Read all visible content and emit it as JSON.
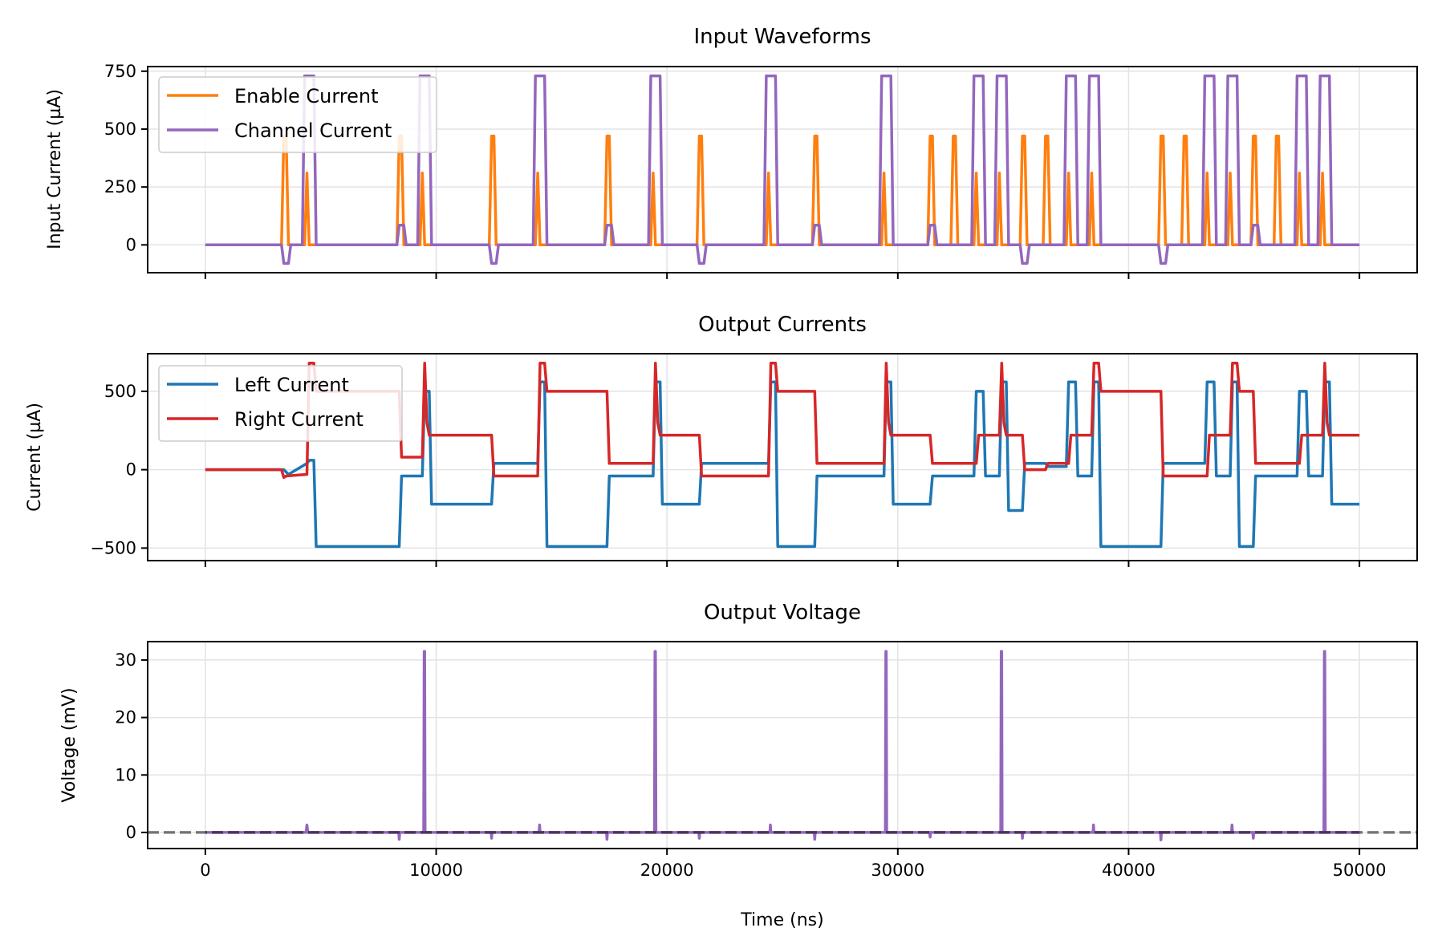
{
  "chart_data": [
    {
      "type": "line",
      "title": "Input Waveforms",
      "xlabel": "",
      "ylabel": "Input Current (µA)",
      "xlim": [
        -2500,
        52500
      ],
      "ylim": [
        -120,
        770
      ],
      "xticks": [
        0,
        10000,
        20000,
        30000,
        40000,
        50000
      ],
      "yticks": [
        0,
        250,
        500,
        750
      ],
      "ytick_labels": [
        "0",
        "250",
        "500",
        "750"
      ],
      "grid": true,
      "legend": "upper-left",
      "series": [
        {
          "name": "Enable Current",
          "color": "#ff7f0e",
          "x": [
            0,
            3300,
            3400,
            3500,
            3600,
            4300,
            4400,
            4500,
            8300,
            8400,
            8500,
            8600,
            9300,
            9400,
            9500,
            12300,
            12400,
            12500,
            12600,
            14300,
            14400,
            14500,
            17300,
            17400,
            17500,
            17600,
            19300,
            19400,
            19500,
            21300,
            21400,
            21500,
            21600,
            24300,
            24400,
            24500,
            26300,
            26400,
            26500,
            26600,
            29300,
            29400,
            29500,
            31300,
            31400,
            31500,
            31600,
            32300,
            32400,
            32500,
            32600,
            33300,
            33400,
            33500,
            34300,
            34400,
            34500,
            35300,
            35400,
            35500,
            35600,
            36300,
            36400,
            36500,
            36600,
            37300,
            37400,
            37500,
            38300,
            38400,
            38500,
            41300,
            41400,
            41500,
            41600,
            42300,
            42400,
            42500,
            42600,
            43300,
            43400,
            43500,
            44300,
            44400,
            44500,
            45300,
            45400,
            45500,
            45600,
            46300,
            46400,
            46500,
            46600,
            47300,
            47400,
            47500,
            48300,
            48400,
            48500,
            50000
          ],
          "y": [
            0,
            0,
            470,
            470,
            0,
            0,
            310,
            0,
            0,
            470,
            470,
            0,
            0,
            310,
            0,
            0,
            470,
            470,
            0,
            0,
            310,
            0,
            0,
            470,
            470,
            0,
            0,
            310,
            0,
            0,
            470,
            470,
            0,
            0,
            310,
            0,
            0,
            470,
            470,
            0,
            0,
            310,
            0,
            0,
            470,
            470,
            0,
            0,
            470,
            470,
            0,
            0,
            310,
            0,
            0,
            310,
            0,
            0,
            470,
            470,
            0,
            0,
            470,
            470,
            0,
            0,
            310,
            0,
            0,
            310,
            0,
            0,
            470,
            470,
            0,
            0,
            470,
            470,
            0,
            0,
            310,
            0,
            0,
            310,
            0,
            0,
            470,
            470,
            0,
            0,
            470,
            470,
            0,
            0,
            310,
            0,
            0,
            310,
            0,
            0
          ]
        },
        {
          "name": "Channel Current",
          "color": "#9467bd",
          "x": [
            0,
            3300,
            3400,
            3600,
            3700,
            4200,
            4300,
            4700,
            4800,
            8300,
            8400,
            8600,
            8700,
            9200,
            9300,
            9700,
            9800,
            12300,
            12400,
            12600,
            12700,
            14200,
            14300,
            14700,
            14800,
            17300,
            17400,
            17600,
            17700,
            19200,
            19300,
            19700,
            19800,
            21300,
            21400,
            21600,
            21700,
            24200,
            24300,
            24700,
            24800,
            26300,
            26400,
            26600,
            26700,
            29200,
            29300,
            29700,
            29800,
            31300,
            31400,
            31600,
            31700,
            33200,
            33300,
            33700,
            33800,
            34200,
            34300,
            34700,
            34800,
            35300,
            35400,
            35600,
            35700,
            37200,
            37300,
            37700,
            37800,
            38200,
            38300,
            38700,
            38800,
            41300,
            41400,
            41600,
            41700,
            43200,
            43300,
            43700,
            43800,
            44200,
            44300,
            44700,
            44800,
            45300,
            45400,
            45600,
            45700,
            47200,
            47300,
            47700,
            47800,
            48200,
            48300,
            48700,
            48800,
            50000
          ],
          "y": [
            0,
            0,
            -80,
            -80,
            0,
            0,
            730,
            730,
            0,
            0,
            85,
            85,
            0,
            0,
            730,
            730,
            0,
            0,
            -80,
            -80,
            0,
            0,
            730,
            730,
            0,
            0,
            85,
            85,
            0,
            0,
            730,
            730,
            0,
            0,
            -80,
            -80,
            0,
            0,
            730,
            730,
            0,
            0,
            85,
            85,
            0,
            0,
            730,
            730,
            0,
            0,
            85,
            85,
            0,
            0,
            730,
            730,
            0,
            0,
            730,
            730,
            0,
            0,
            -80,
            -80,
            0,
            0,
            730,
            730,
            0,
            0,
            730,
            730,
            0,
            0,
            -80,
            -80,
            0,
            0,
            730,
            730,
            0,
            0,
            730,
            730,
            0,
            0,
            85,
            85,
            0,
            0,
            730,
            730,
            0,
            0,
            730,
            730,
            0,
            0
          ]
        }
      ]
    },
    {
      "type": "line",
      "title": "Output Currents",
      "xlabel": "",
      "ylabel": "Current (µA)",
      "xlim": [
        -2500,
        52500
      ],
      "ylim": [
        -580,
        740
      ],
      "xticks": [
        0,
        10000,
        20000,
        30000,
        40000,
        50000
      ],
      "yticks": [
        -500,
        0,
        500
      ],
      "ytick_labels": [
        "−500",
        "0",
        "500"
      ],
      "grid": true,
      "legend": "upper-left",
      "series": [
        {
          "name": "Left Current",
          "color": "#1f77b4",
          "x": [
            0,
            3400,
            3600,
            4400,
            4500,
            4700,
            4800,
            8400,
            8500,
            9400,
            9500,
            9700,
            9800,
            12400,
            12500,
            14400,
            14500,
            14700,
            14800,
            17400,
            17500,
            19400,
            19500,
            19700,
            19800,
            21400,
            21500,
            24400,
            24500,
            24700,
            24800,
            26400,
            26500,
            29400,
            29500,
            29700,
            29800,
            31400,
            31500,
            33300,
            33400,
            33700,
            33800,
            34400,
            34500,
            34700,
            34800,
            35400,
            35500,
            36400,
            36500,
            37300,
            37400,
            37700,
            37800,
            38400,
            38500,
            38700,
            38800,
            41400,
            41500,
            43300,
            43400,
            43700,
            43800,
            44400,
            44500,
            44700,
            44800,
            45400,
            45500,
            47300,
            47400,
            47700,
            47800,
            48400,
            48500,
            48700,
            48800,
            50000
          ],
          "y": [
            0,
            0,
            -30,
            40,
            60,
            60,
            -490,
            -490,
            -40,
            -40,
            500,
            500,
            -220,
            -220,
            40,
            40,
            560,
            560,
            -490,
            -490,
            -40,
            -40,
            560,
            560,
            -220,
            -220,
            40,
            40,
            560,
            560,
            -490,
            -490,
            -40,
            -40,
            560,
            560,
            -220,
            -220,
            -40,
            -40,
            500,
            500,
            -40,
            -40,
            560,
            560,
            -260,
            -260,
            40,
            40,
            20,
            20,
            560,
            560,
            -40,
            -40,
            560,
            560,
            -490,
            -490,
            40,
            40,
            560,
            560,
            -40,
            -40,
            560,
            560,
            -490,
            -490,
            -40,
            -40,
            500,
            500,
            -40,
            -40,
            560,
            560,
            -220,
            -220
          ]
        },
        {
          "name": "Right Current",
          "color": "#d62728",
          "x": [
            0,
            3300,
            3400,
            3500,
            4400,
            4500,
            4700,
            4800,
            8400,
            8500,
            9400,
            9500,
            9600,
            9700,
            12400,
            12500,
            14400,
            14500,
            14700,
            14800,
            17400,
            17500,
            19400,
            19500,
            19600,
            19700,
            21400,
            21500,
            24400,
            24500,
            24700,
            24800,
            26400,
            26500,
            29400,
            29500,
            29600,
            29700,
            31400,
            31500,
            33400,
            33500,
            34400,
            34500,
            34600,
            34700,
            35400,
            35500,
            36400,
            36500,
            37400,
            37500,
            38400,
            38500,
            38700,
            38800,
            41400,
            41500,
            43400,
            43500,
            44400,
            44500,
            44700,
            44800,
            45400,
            45500,
            47400,
            47500,
            48400,
            48500,
            48600,
            48700,
            50000
          ],
          "y": [
            0,
            0,
            -50,
            -40,
            -30,
            680,
            680,
            500,
            500,
            80,
            80,
            680,
            300,
            220,
            220,
            -40,
            -40,
            680,
            680,
            500,
            500,
            40,
            40,
            680,
            300,
            220,
            220,
            -40,
            -40,
            680,
            680,
            500,
            500,
            40,
            40,
            680,
            300,
            220,
            220,
            40,
            40,
            220,
            220,
            680,
            300,
            220,
            220,
            0,
            0,
            40,
            40,
            220,
            220,
            680,
            680,
            500,
            500,
            -40,
            -40,
            220,
            220,
            680,
            680,
            500,
            500,
            40,
            40,
            220,
            220,
            680,
            300,
            220,
            220
          ]
        }
      ]
    },
    {
      "type": "line",
      "title": "Output Voltage",
      "xlabel": "Time (ns)",
      "ylabel": "Voltage (mV)",
      "xlim": [
        -2500,
        52500
      ],
      "ylim": [
        -2.8,
        33.2
      ],
      "xticks": [
        0,
        10000,
        20000,
        30000,
        40000,
        50000
      ],
      "xtick_labels": [
        "0",
        "10000",
        "20000",
        "30000",
        "40000",
        "50000"
      ],
      "yticks": [
        0,
        10,
        20,
        30
      ],
      "ytick_labels": [
        "0",
        "10",
        "20",
        "30"
      ],
      "grid": true,
      "reference_line": {
        "y": 0,
        "color": "#808080",
        "style": "dashed"
      },
      "series": [
        {
          "color": "#9467bd",
          "x": [
            0,
            4360,
            4400,
            4440,
            8380,
            8400,
            8420,
            9460,
            9480,
            9500,
            9520,
            12380,
            12400,
            12420,
            14460,
            14480,
            14500,
            17380,
            17400,
            17420,
            19460,
            19480,
            19500,
            19520,
            21380,
            21400,
            21420,
            24460,
            24480,
            24500,
            26380,
            26400,
            26420,
            29460,
            29480,
            29500,
            29520,
            31380,
            31400,
            31420,
            34460,
            34480,
            34500,
            34520,
            35380,
            35400,
            35420,
            38460,
            38480,
            38500,
            41380,
            41400,
            41420,
            44460,
            44480,
            44500,
            45380,
            45400,
            45420,
            48460,
            48480,
            48500,
            48520,
            50000
          ],
          "y": [
            0,
            0,
            1.3,
            0,
            0,
            -1.2,
            0,
            0,
            31.5,
            31.5,
            0,
            0,
            -1,
            0,
            0,
            1.3,
            0,
            0,
            -1.2,
            0,
            0,
            31.5,
            31.5,
            0,
            0,
            -1,
            0,
            0,
            1.3,
            0,
            0,
            -1.2,
            0,
            0,
            31.5,
            31.5,
            0,
            0,
            -0.8,
            0,
            0,
            31.5,
            31.5,
            0,
            0,
            -1,
            0,
            0,
            1.3,
            0,
            0,
            -1.3,
            0,
            0,
            1.3,
            0,
            0,
            -1,
            0,
            0,
            31.5,
            31.5,
            0,
            0
          ]
        }
      ]
    }
  ]
}
